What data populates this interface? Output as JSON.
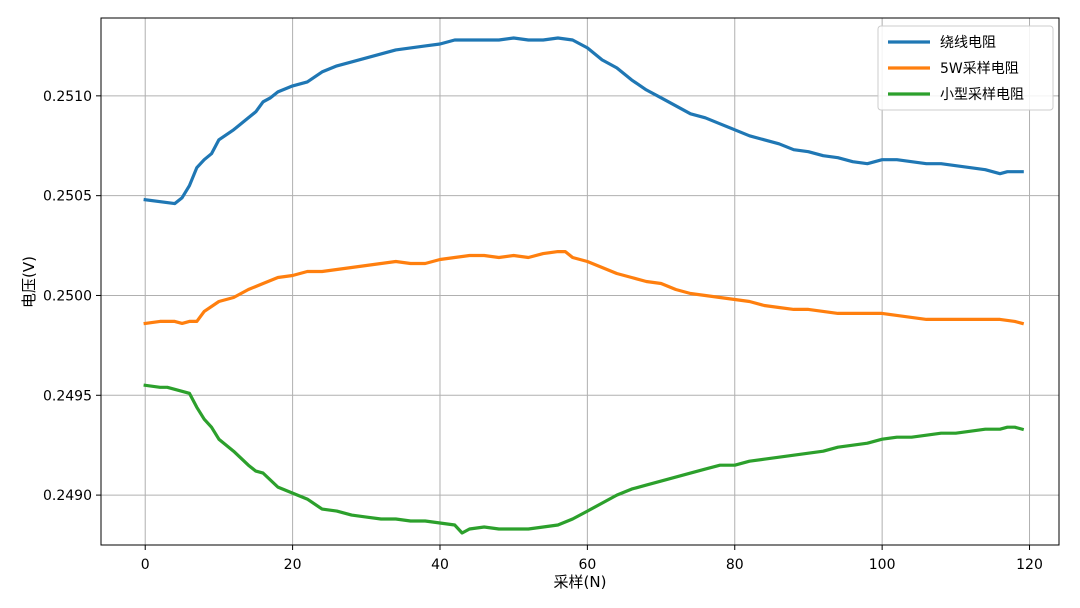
{
  "chart_data": {
    "type": "line",
    "xlabel": "采样(N)",
    "ylabel": "电压(V)",
    "xlim": [
      -6,
      124
    ],
    "ylim": [
      0.24875,
      0.25139
    ],
    "xticks": [
      0,
      20,
      40,
      60,
      80,
      100,
      120
    ],
    "yticks": [
      0.249,
      0.2495,
      0.25,
      0.2505,
      0.251
    ],
    "ytick_labels": [
      "0.2490",
      "0.2495",
      "0.2500",
      "0.2505",
      "0.2510"
    ],
    "grid": true,
    "legend_position": "top-right",
    "series": [
      {
        "name": "绕线电阻",
        "color": "#1f77b4",
        "x": [
          0,
          4,
          5,
          6,
          7,
          8,
          9,
          10,
          12,
          14,
          15,
          16,
          17,
          18,
          20,
          22,
          24,
          26,
          28,
          30,
          32,
          34,
          36,
          38,
          40,
          42,
          44,
          46,
          48,
          50,
          52,
          54,
          56,
          58,
          60,
          62,
          64,
          66,
          68,
          70,
          72,
          74,
          76,
          78,
          80,
          82,
          84,
          86,
          88,
          90,
          92,
          94,
          96,
          98,
          100,
          102,
          104,
          106,
          108,
          110,
          112,
          114,
          116,
          117,
          118,
          119
        ],
        "y": [
          0.25048,
          0.25046,
          0.25049,
          0.25055,
          0.25064,
          0.25068,
          0.25071,
          0.25078,
          0.25083,
          0.25089,
          0.25092,
          0.25097,
          0.25099,
          0.25102,
          0.25105,
          0.25107,
          0.25112,
          0.25115,
          0.25117,
          0.25119,
          0.25121,
          0.25123,
          0.25124,
          0.25125,
          0.25126,
          0.25128,
          0.25128,
          0.25128,
          0.25128,
          0.25129,
          0.25128,
          0.25128,
          0.25129,
          0.25128,
          0.25124,
          0.25118,
          0.25114,
          0.25108,
          0.25103,
          0.25099,
          0.25095,
          0.25091,
          0.25089,
          0.25086,
          0.25083,
          0.2508,
          0.25078,
          0.25076,
          0.25073,
          0.25072,
          0.2507,
          0.25069,
          0.25067,
          0.25066,
          0.25068,
          0.25068,
          0.25067,
          0.25066,
          0.25066,
          0.25065,
          0.25064,
          0.25063,
          0.25061,
          0.25062,
          0.25062,
          0.25062
        ]
      },
      {
        "name": "5W采样电阻",
        "color": "#ff7f0e",
        "x": [
          0,
          2,
          4,
          5,
          6,
          7,
          8,
          10,
          12,
          14,
          16,
          18,
          20,
          22,
          24,
          26,
          28,
          30,
          32,
          34,
          36,
          38,
          40,
          42,
          44,
          46,
          48,
          50,
          52,
          54,
          56,
          57,
          58,
          60,
          62,
          64,
          66,
          68,
          70,
          72,
          74,
          76,
          78,
          80,
          82,
          84,
          86,
          88,
          90,
          92,
          94,
          96,
          98,
          100,
          102,
          104,
          106,
          108,
          110,
          112,
          114,
          116,
          118,
          119
        ],
        "y": [
          0.24986,
          0.24987,
          0.24987,
          0.24986,
          0.24987,
          0.24987,
          0.24992,
          0.24997,
          0.24999,
          0.25003,
          0.25006,
          0.25009,
          0.2501,
          0.25012,
          0.25012,
          0.25013,
          0.25014,
          0.25015,
          0.25016,
          0.25017,
          0.25016,
          0.25016,
          0.25018,
          0.25019,
          0.2502,
          0.2502,
          0.25019,
          0.2502,
          0.25019,
          0.25021,
          0.25022,
          0.25022,
          0.25019,
          0.25017,
          0.25014,
          0.25011,
          0.25009,
          0.25007,
          0.25006,
          0.25003,
          0.25001,
          0.25,
          0.24999,
          0.24998,
          0.24997,
          0.24995,
          0.24994,
          0.24993,
          0.24993,
          0.24992,
          0.24991,
          0.24991,
          0.24991,
          0.24991,
          0.2499,
          0.24989,
          0.24988,
          0.24988,
          0.24988,
          0.24988,
          0.24988,
          0.24988,
          0.24987,
          0.24986
        ]
      },
      {
        "name": "小型采样电阻",
        "color": "#2ca02c",
        "x": [
          0,
          2,
          3,
          4,
          6,
          7,
          8,
          9,
          10,
          12,
          14,
          15,
          16,
          18,
          20,
          22,
          24,
          26,
          28,
          30,
          32,
          34,
          36,
          38,
          40,
          42,
          43,
          44,
          46,
          48,
          50,
          52,
          54,
          56,
          58,
          60,
          62,
          64,
          66,
          68,
          70,
          72,
          74,
          76,
          78,
          80,
          82,
          84,
          86,
          88,
          90,
          92,
          94,
          96,
          98,
          100,
          102,
          104,
          106,
          108,
          110,
          112,
          114,
          116,
          117,
          118,
          119
        ],
        "y": [
          0.24955,
          0.24954,
          0.24954,
          0.24953,
          0.24951,
          0.24944,
          0.24938,
          0.24934,
          0.24928,
          0.24922,
          0.24915,
          0.24912,
          0.24911,
          0.24904,
          0.24901,
          0.24898,
          0.24893,
          0.24892,
          0.2489,
          0.24889,
          0.24888,
          0.24888,
          0.24887,
          0.24887,
          0.24886,
          0.24885,
          0.24881,
          0.24883,
          0.24884,
          0.24883,
          0.24883,
          0.24883,
          0.24884,
          0.24885,
          0.24888,
          0.24892,
          0.24896,
          0.249,
          0.24903,
          0.24905,
          0.24907,
          0.24909,
          0.24911,
          0.24913,
          0.24915,
          0.24915,
          0.24917,
          0.24918,
          0.24919,
          0.2492,
          0.24921,
          0.24922,
          0.24924,
          0.24925,
          0.24926,
          0.24928,
          0.24929,
          0.24929,
          0.2493,
          0.24931,
          0.24931,
          0.24932,
          0.24933,
          0.24933,
          0.24934,
          0.24934,
          0.24933
        ]
      }
    ]
  }
}
